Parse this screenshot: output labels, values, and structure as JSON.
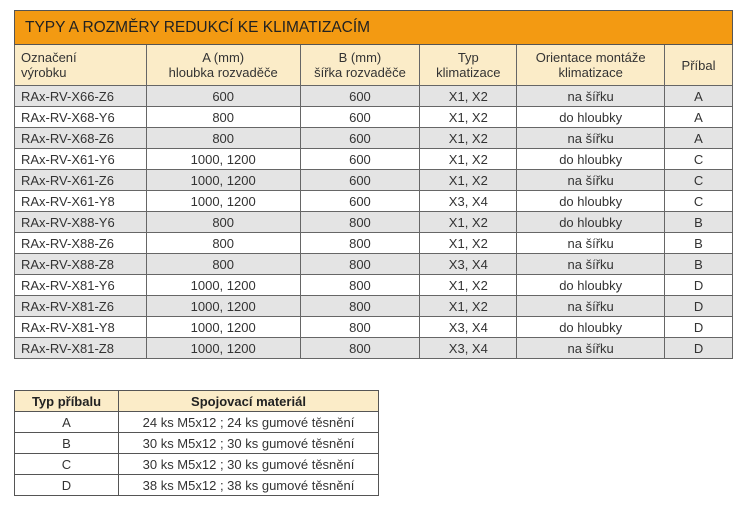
{
  "main_table": {
    "title": "TYPY A ROZMĚRY REDUKCÍ KE KLIMATIZACÍM",
    "headers": [
      [
        "Označení",
        "výrobku"
      ],
      [
        "A (mm)",
        "hloubka rozvaděče"
      ],
      [
        "B (mm)",
        "šířka rozvaděče"
      ],
      [
        "Typ",
        "klimatizace"
      ],
      [
        "Orientace montáže",
        "klimatizace"
      ],
      [
        "Příbal",
        ""
      ]
    ],
    "rows": [
      [
        "RAx-RV-X66-Z6",
        "600",
        "600",
        "X1, X2",
        "na šířku",
        "A"
      ],
      [
        "RAx-RV-X68-Y6",
        "800",
        "600",
        "X1, X2",
        "do hloubky",
        "A"
      ],
      [
        "RAx-RV-X68-Z6",
        "800",
        "600",
        "X1, X2",
        "na šířku",
        "A"
      ],
      [
        "RAx-RV-X61-Y6",
        "1000, 1200",
        "600",
        "X1, X2",
        "do hloubky",
        "C"
      ],
      [
        "RAx-RV-X61-Z6",
        "1000, 1200",
        "600",
        "X1, X2",
        "na šířku",
        "C"
      ],
      [
        "RAx-RV-X61-Y8",
        "1000, 1200",
        "600",
        "X3, X4",
        "do hloubky",
        "C"
      ],
      [
        "RAx-RV-X88-Y6",
        "800",
        "800",
        "X1, X2",
        "do hloubky",
        "B"
      ],
      [
        "RAx-RV-X88-Z6",
        "800",
        "800",
        "X1, X2",
        "na šířku",
        "B"
      ],
      [
        "RAx-RV-X88-Z8",
        "800",
        "800",
        "X3, X4",
        "na šířku",
        "B"
      ],
      [
        "RAx-RV-X81-Y6",
        "1000, 1200",
        "800",
        "X1, X2",
        "do hloubky",
        "D"
      ],
      [
        "RAx-RV-X81-Z6",
        "1000, 1200",
        "800",
        "X1, X2",
        "na šířku",
        "D"
      ],
      [
        "RAx-RV-X81-Y8",
        "1000, 1200",
        "800",
        "X3, X4",
        "do hloubky",
        "D"
      ],
      [
        "RAx-RV-X81-Z8",
        "1000, 1200",
        "800",
        "X3, X4",
        "na šířku",
        "D"
      ]
    ]
  },
  "accessory_table": {
    "headers": [
      "Typ příbalu",
      "Spojovací materiál"
    ],
    "rows": [
      [
        "A",
        "24 ks M5x12 ; 24 ks gumové těsnění"
      ],
      [
        "B",
        "30 ks M5x12 ; 30 ks gumové těsnění"
      ],
      [
        "C",
        "30 ks M5x12 ; 30 ks gumové těsnění"
      ],
      [
        "D",
        "38 ks M5x12 ; 38 ks gumové těsnění"
      ]
    ]
  },
  "colors": {
    "title_bg": "#f39a12",
    "header_bg": "#fbecc8",
    "stripe": "#e4e4e4"
  }
}
